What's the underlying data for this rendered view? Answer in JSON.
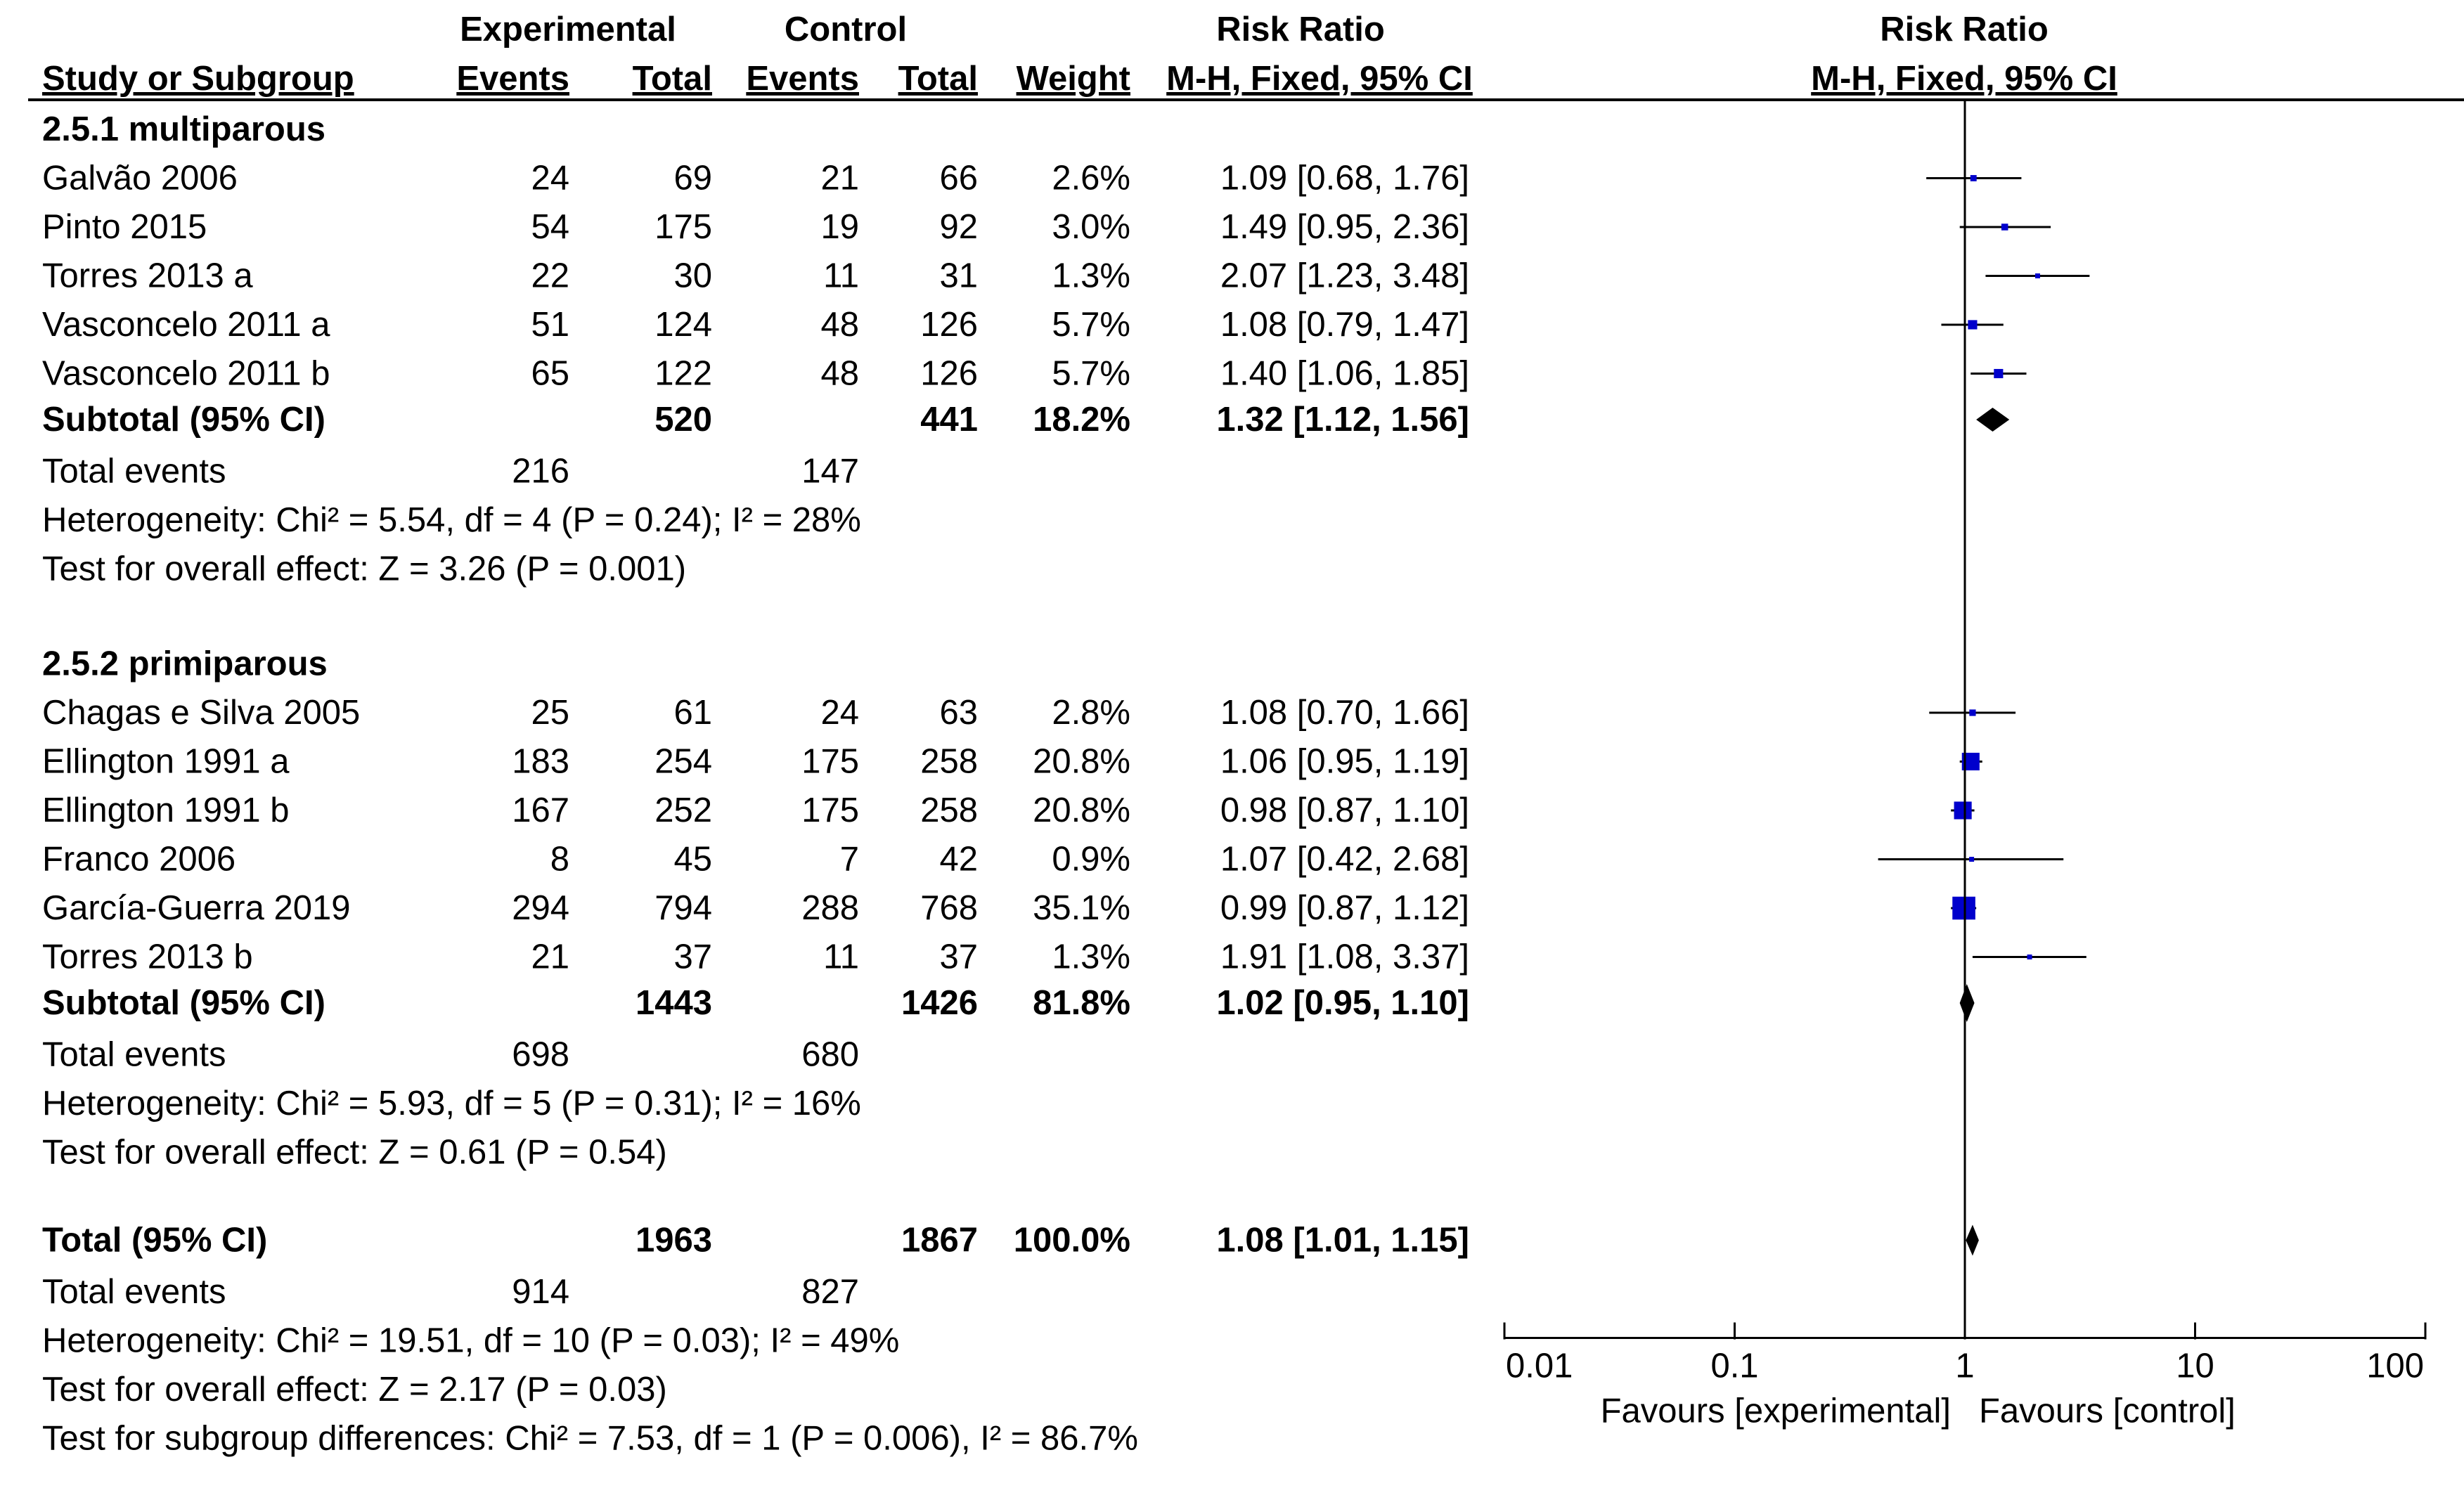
{
  "header": {
    "group1": "Experimental",
    "group2": "Control",
    "rr_col": "Risk Ratio",
    "rr_plot": "Risk Ratio",
    "study": "Study or Subgroup",
    "events1": "Events",
    "total1": "Total",
    "events2": "Events",
    "total2": "Total",
    "weight": "Weight",
    "method_col": "M-H, Fixed, 95% CI",
    "method_plot": "M-H, Fixed, 95% CI"
  },
  "subgroups": [
    {
      "title": "2.5.1 multiparous",
      "studies": [
        {
          "name": "Galvão 2006",
          "e1": "24",
          "n1": "69",
          "e2": "21",
          "n2": "66",
          "weight": "2.6%",
          "ci_text": "1.09 [0.68, 1.76]",
          "rr": 1.09,
          "lo": 0.68,
          "hi": 1.76,
          "w": 2.6
        },
        {
          "name": "Pinto 2015",
          "e1": "54",
          "n1": "175",
          "e2": "19",
          "n2": "92",
          "weight": "3.0%",
          "ci_text": "1.49 [0.95, 2.36]",
          "rr": 1.49,
          "lo": 0.95,
          "hi": 2.36,
          "w": 3.0
        },
        {
          "name": "Torres 2013 a",
          "e1": "22",
          "n1": "30",
          "e2": "11",
          "n2": "31",
          "weight": "1.3%",
          "ci_text": "2.07 [1.23, 3.48]",
          "rr": 2.07,
          "lo": 1.23,
          "hi": 3.48,
          "w": 1.3
        },
        {
          "name": "Vasconcelo 2011 a",
          "e1": "51",
          "n1": "124",
          "e2": "48",
          "n2": "126",
          "weight": "5.7%",
          "ci_text": "1.08 [0.79, 1.47]",
          "rr": 1.08,
          "lo": 0.79,
          "hi": 1.47,
          "w": 5.7
        },
        {
          "name": "Vasconcelo 2011 b",
          "e1": "65",
          "n1": "122",
          "e2": "48",
          "n2": "126",
          "weight": "5.7%",
          "ci_text": "1.40 [1.06, 1.85]",
          "rr": 1.4,
          "lo": 1.06,
          "hi": 1.85,
          "w": 5.7
        }
      ],
      "subtotal": {
        "label": "Subtotal (95% CI)",
        "n1": "520",
        "n2": "441",
        "weight": "18.2%",
        "ci_text": "1.32 [1.12, 1.56]",
        "rr": 1.32,
        "lo": 1.12,
        "hi": 1.56
      },
      "total_events": {
        "label": "Total events",
        "e1": "216",
        "e2": "147"
      },
      "heterogeneity": "Heterogeneity: Chi² = 5.54, df = 4 (P = 0.24); I² = 28%",
      "overall": "Test for overall effect: Z = 3.26 (P = 0.001)"
    },
    {
      "title": "2.5.2 primiparous",
      "studies": [
        {
          "name": "Chagas e Silva 2005",
          "e1": "25",
          "n1": "61",
          "e2": "24",
          "n2": "63",
          "weight": "2.8%",
          "ci_text": "1.08 [0.70, 1.66]",
          "rr": 1.08,
          "lo": 0.7,
          "hi": 1.66,
          "w": 2.8
        },
        {
          "name": "Ellington 1991 a",
          "e1": "183",
          "n1": "254",
          "e2": "175",
          "n2": "258",
          "weight": "20.8%",
          "ci_text": "1.06 [0.95, 1.19]",
          "rr": 1.06,
          "lo": 0.95,
          "hi": 1.19,
          "w": 20.8
        },
        {
          "name": "Ellington 1991 b",
          "e1": "167",
          "n1": "252",
          "e2": "175",
          "n2": "258",
          "weight": "20.8%",
          "ci_text": "0.98 [0.87, 1.10]",
          "rr": 0.98,
          "lo": 0.87,
          "hi": 1.1,
          "w": 20.8
        },
        {
          "name": "Franco 2006",
          "e1": "8",
          "n1": "45",
          "e2": "7",
          "n2": "42",
          "weight": "0.9%",
          "ci_text": "1.07 [0.42, 2.68]",
          "rr": 1.07,
          "lo": 0.42,
          "hi": 2.68,
          "w": 0.9
        },
        {
          "name": "García-Guerra 2019",
          "e1": "294",
          "n1": "794",
          "e2": "288",
          "n2": "768",
          "weight": "35.1%",
          "ci_text": "0.99 [0.87, 1.12]",
          "rr": 0.99,
          "lo": 0.87,
          "hi": 1.12,
          "w": 35.1
        },
        {
          "name": "Torres 2013 b",
          "e1": "21",
          "n1": "37",
          "e2": "11",
          "n2": "37",
          "weight": "1.3%",
          "ci_text": "1.91 [1.08, 3.37]",
          "rr": 1.91,
          "lo": 1.08,
          "hi": 3.37,
          "w": 1.3
        }
      ],
      "subtotal": {
        "label": "Subtotal (95% CI)",
        "n1": "1443",
        "n2": "1426",
        "weight": "81.8%",
        "ci_text": "1.02 [0.95, 1.10]",
        "rr": 1.02,
        "lo": 0.95,
        "hi": 1.1
      },
      "total_events": {
        "label": "Total events",
        "e1": "698",
        "e2": "680"
      },
      "heterogeneity": "Heterogeneity: Chi² = 5.93, df = 5 (P = 0.31); I² = 16%",
      "overall": "Test for overall effect: Z = 0.61 (P = 0.54)"
    }
  ],
  "total": {
    "label": "Total (95% CI)",
    "n1": "1963",
    "n2": "1867",
    "weight": "100.0%",
    "ci_text": "1.08 [1.01, 1.15]",
    "rr": 1.08,
    "lo": 1.01,
    "hi": 1.15
  },
  "total_events": {
    "label": "Total events",
    "e1": "914",
    "e2": "827"
  },
  "heterogeneity": "Heterogeneity: Chi² = 19.51, df = 10 (P = 0.03); I² = 49%",
  "overall": "Test for overall effect: Z = 2.17 (P = 0.03)",
  "subgroup_diff": "Test for subgroup differences: Chi² = 7.53, df = 1 (P = 0.006), I² = 86.7%",
  "axis": {
    "ticks": [
      0.01,
      0.1,
      1,
      10,
      100
    ],
    "tick_labels": [
      "0.01",
      "0.1",
      "1",
      "10",
      "100"
    ],
    "scale": "log",
    "favours_left": "Favours [experimental]",
    "favours_right": "Favours [control]"
  },
  "colors": {
    "study_marker": "#0000cc",
    "diamond": "#000000",
    "line": "#000000"
  },
  "chart_data": {
    "type": "scatter",
    "title": "",
    "xlabel": "Risk Ratio (M-H, Fixed, 95% CI)",
    "x_scale": "log",
    "xlim": [
      0.01,
      100
    ],
    "categories": [
      "Galvão 2006",
      "Pinto 2015",
      "Torres 2013 a",
      "Vasconcelo 2011 a",
      "Vasconcelo 2011 b",
      "Subtotal (95% CI)",
      "Chagas e Silva 2005",
      "Ellington 1991 a",
      "Ellington 1991 b",
      "Franco 2006",
      "García-Guerra 2019",
      "Torres 2013 b",
      "Subtotal (95% CI)",
      "Total (95% CI)"
    ],
    "values": [
      1.09,
      1.49,
      2.07,
      1.08,
      1.4,
      1.32,
      1.08,
      1.06,
      0.98,
      1.07,
      0.99,
      1.91,
      1.02,
      1.08
    ],
    "ci_lower": [
      0.68,
      0.95,
      1.23,
      0.79,
      1.06,
      1.12,
      0.7,
      0.95,
      0.87,
      0.42,
      0.87,
      1.08,
      0.95,
      1.01
    ],
    "ci_upper": [
      1.76,
      2.36,
      3.48,
      1.47,
      1.85,
      1.56,
      1.66,
      1.19,
      1.1,
      2.68,
      1.12,
      3.37,
      1.1,
      1.15
    ],
    "weights": [
      2.6,
      3.0,
      1.3,
      5.7,
      5.7,
      18.2,
      2.8,
      20.8,
      20.8,
      0.9,
      35.1,
      1.3,
      81.8,
      100.0
    ],
    "reference_line": 1
  }
}
